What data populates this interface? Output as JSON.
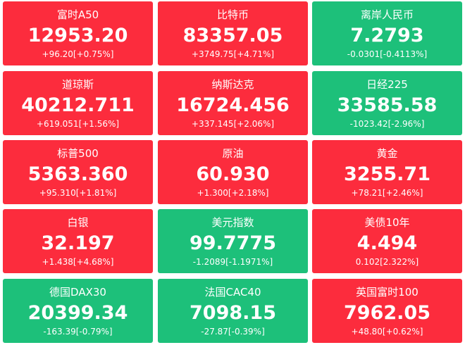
{
  "tiles": [
    {
      "name": "富时A50",
      "price": "12953.20",
      "change": "+96.20[+0.75%]",
      "color": "#fc2c3d"
    },
    {
      "name": "比特币",
      "price": "83357.05",
      "change": "+3749.75[+4.71%]",
      "color": "#fc2c3d"
    },
    {
      "name": "离岸人民币",
      "price": "7.2793",
      "change": "-0.0301[-0.4113%]",
      "color": "#1dc07a"
    },
    {
      "name": "道琼斯",
      "price": "40212.711",
      "change": "+619.051[+1.56%]",
      "color": "#fc2c3d"
    },
    {
      "name": "纳斯达克",
      "price": "16724.456",
      "change": "+337.145[+2.06%]",
      "color": "#fc2c3d"
    },
    {
      "name": "日经225",
      "price": "33585.58",
      "change": "-1023.42[-2.96%]",
      "color": "#1dc07a"
    },
    {
      "name": "标普500",
      "price": "5363.360",
      "change": "+95.310[+1.81%]",
      "color": "#fc2c3d"
    },
    {
      "name": "原油",
      "price": "60.930",
      "change": "+1.300[+2.18%]",
      "color": "#fc2c3d"
    },
    {
      "name": "黄金",
      "price": "3255.71",
      "change": "+78.21[+2.46%]",
      "color": "#fc2c3d"
    },
    {
      "name": "白银",
      "price": "32.197",
      "change": "+1.438[+4.68%]",
      "color": "#fc2c3d"
    },
    {
      "name": "美元指数",
      "price": "99.7775",
      "change": "-1.2089[-1.1971%]",
      "color": "#1dc07a"
    },
    {
      "name": "美债10年",
      "price": "4.494",
      "change": "0.102[2.322%]",
      "color": "#fc2c3d"
    },
    {
      "name": "德国DAX30",
      "price": "20399.34",
      "change": "-163.39[-0.79%]",
      "color": "#1dc07a"
    },
    {
      "name": "法国CAC40",
      "price": "7098.15",
      "change": "-27.87[-0.39%]",
      "color": "#1dc07a"
    },
    {
      "name": "英国富时100",
      "price": "7962.05",
      "change": "+48.80[+0.62%]",
      "color": "#fc2c3d"
    }
  ]
}
